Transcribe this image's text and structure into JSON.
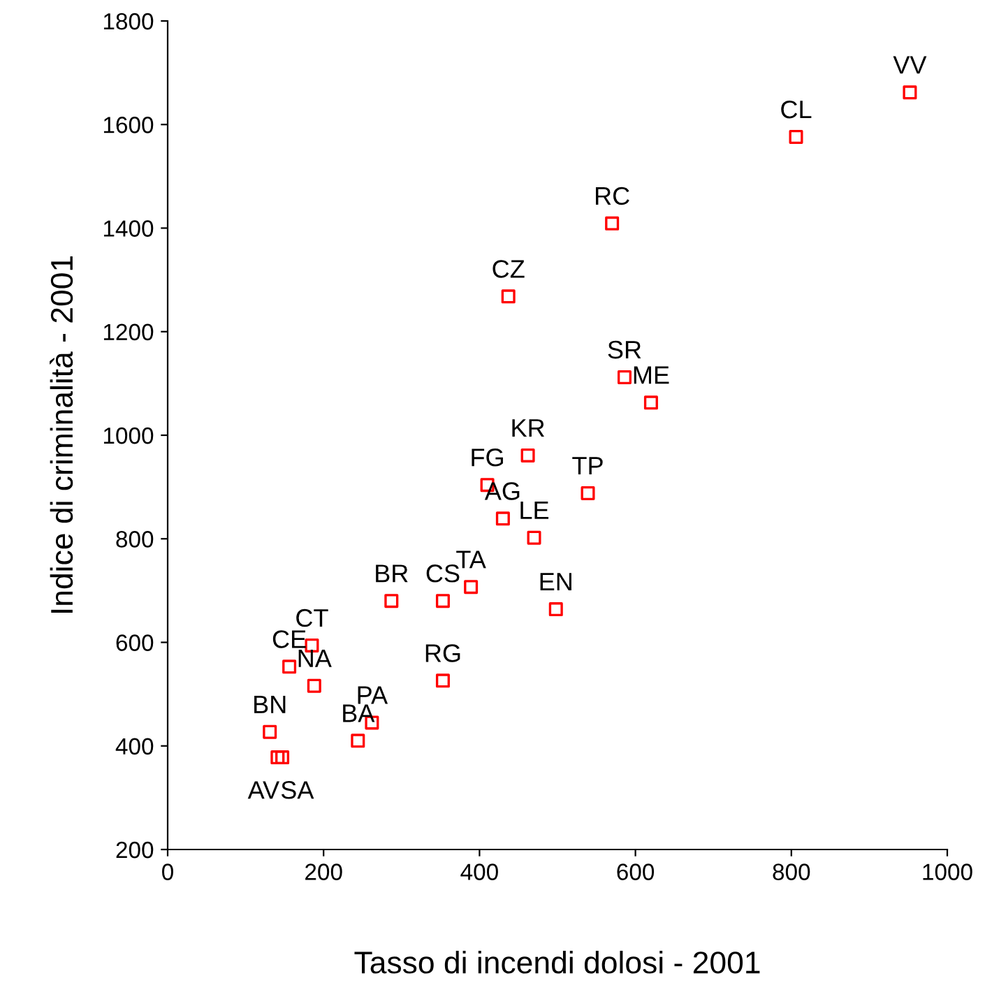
{
  "chart_data": {
    "type": "scatter",
    "xlabel": "Tasso di incendi dolosi - 2001",
    "ylabel": "Indice di criminalità - 2001",
    "xlim": [
      0,
      1000
    ],
    "xticks": [
      0,
      200,
      400,
      600,
      800,
      1000
    ],
    "ylim": [
      200,
      1800
    ],
    "yticks": [
      200,
      400,
      600,
      800,
      1000,
      1200,
      1400,
      1600,
      1800
    ],
    "grid": false,
    "marker": "square",
    "series": [
      {
        "color": "#ff0000",
        "x": [
          952,
          806,
          570,
          437,
          586,
          620,
          462,
          410,
          430,
          470,
          539,
          389,
          353,
          287,
          498,
          353,
          185,
          156,
          188,
          262,
          244,
          131,
          141,
          147
        ],
        "values": [
          1662,
          1576,
          1409,
          1268,
          1112,
          1063,
          961,
          904,
          839,
          802,
          888,
          707,
          680,
          680,
          664,
          526,
          594,
          553,
          516,
          445,
          410,
          427,
          378,
          378
        ]
      }
    ],
    "annotations": [
      {
        "text": "VV",
        "x": 952,
        "y": 1662
      },
      {
        "text": "CL",
        "x": 806,
        "y": 1576
      },
      {
        "text": "RC",
        "x": 570,
        "y": 1409
      },
      {
        "text": "CZ",
        "x": 437,
        "y": 1268
      },
      {
        "text": "SR",
        "x": 586,
        "y": 1112
      },
      {
        "text": "ME",
        "x": 620,
        "y": 1063
      },
      {
        "text": "KR",
        "x": 462,
        "y": 961
      },
      {
        "text": "FG",
        "x": 410,
        "y": 904
      },
      {
        "text": "AG",
        "x": 430,
        "y": 839
      },
      {
        "text": "LE",
        "x": 470,
        "y": 802
      },
      {
        "text": "TP",
        "x": 539,
        "y": 888
      },
      {
        "text": "TA",
        "x": 389,
        "y": 707
      },
      {
        "text": "CS",
        "x": 353,
        "y": 680
      },
      {
        "text": "BR",
        "x": 287,
        "y": 680
      },
      {
        "text": "EN",
        "x": 498,
        "y": 664
      },
      {
        "text": "RG",
        "x": 353,
        "y": 526
      },
      {
        "text": "CT",
        "x": 185,
        "y": 594
      },
      {
        "text": "CE",
        "x": 156,
        "y": 553
      },
      {
        "text": "NA",
        "x": 188,
        "y": 516
      },
      {
        "text": "PA",
        "x": 262,
        "y": 445
      },
      {
        "text": "BA",
        "x": 244,
        "y": 410
      },
      {
        "text": "BN",
        "x": 131,
        "y": 427
      },
      {
        "text": "AV",
        "x": 141,
        "y": 378
      },
      {
        "text": "SA",
        "x": 147,
        "y": 378
      }
    ]
  }
}
